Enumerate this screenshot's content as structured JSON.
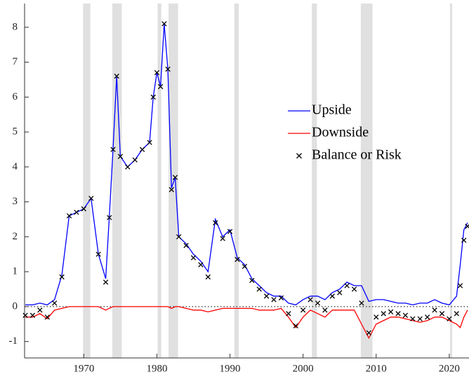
{
  "chart_data": {
    "type": "line",
    "x": [
      1962,
      1963,
      1964,
      1965,
      1966,
      1967,
      1968,
      1969,
      1970,
      1971,
      1972,
      1973,
      1973.5,
      1974,
      1974.5,
      1975,
      1976,
      1977,
      1978,
      1979,
      1979.5,
      1980,
      1980.5,
      1981,
      1981.5,
      1982,
      1982.5,
      1983,
      1984,
      1985,
      1986,
      1987,
      1988,
      1989,
      1990,
      1991,
      1992,
      1993,
      1994,
      1995,
      1996,
      1997,
      1998,
      1999,
      2000,
      2001,
      2002,
      2003,
      2004,
      2005,
      2006,
      2007,
      2008,
      2009,
      2010,
      2011,
      2012,
      2013,
      2014,
      2015,
      2016,
      2017,
      2018,
      2019,
      2020,
      2021,
      2021.5,
      2022,
      2022.5
    ],
    "series": [
      {
        "name": "Upside",
        "color": "#0000ff",
        "marker": "line",
        "values": [
          0.05,
          0.05,
          0.1,
          0.05,
          0.2,
          0.9,
          2.6,
          2.7,
          2.8,
          3.1,
          1.5,
          0.8,
          2.6,
          4.5,
          6.6,
          4.3,
          4.0,
          4.2,
          4.5,
          4.7,
          6.0,
          6.7,
          6.3,
          8.1,
          6.8,
          3.4,
          3.7,
          2.0,
          1.8,
          1.5,
          1.3,
          1.0,
          2.5,
          2.0,
          2.2,
          1.4,
          1.2,
          0.8,
          0.6,
          0.4,
          0.3,
          0.3,
          0.1,
          0.05,
          0.2,
          0.3,
          0.3,
          0.2,
          0.4,
          0.5,
          0.7,
          0.6,
          0.6,
          0.15,
          0.2,
          0.2,
          0.15,
          0.1,
          0.1,
          0.05,
          0.1,
          0.1,
          0.2,
          0.1,
          0.05,
          0.3,
          1.2,
          2.2,
          2.4
        ]
      },
      {
        "name": "Downside",
        "color": "#ff0000",
        "marker": "line",
        "values": [
          -0.3,
          -0.3,
          -0.2,
          -0.35,
          -0.1,
          -0.05,
          0,
          0,
          0,
          0,
          0,
          -0.1,
          -0.05,
          0,
          0,
          0,
          0,
          0,
          0,
          0,
          0,
          0,
          0,
          0,
          0,
          -0.05,
          0,
          0,
          -0.05,
          -0.1,
          -0.1,
          -0.15,
          -0.1,
          -0.05,
          -0.05,
          -0.05,
          -0.05,
          -0.05,
          -0.1,
          -0.1,
          -0.1,
          -0.05,
          -0.3,
          -0.6,
          -0.3,
          -0.1,
          -0.2,
          -0.3,
          -0.1,
          -0.1,
          -0.1,
          -0.1,
          -0.5,
          -0.9,
          -0.5,
          -0.4,
          -0.3,
          -0.3,
          -0.35,
          -0.4,
          -0.45,
          -0.4,
          -0.3,
          -0.3,
          -0.4,
          -0.5,
          -0.6,
          -0.3,
          -0.1
        ]
      },
      {
        "name": "Balance or Risk",
        "color": "#000000",
        "marker": "x",
        "values": [
          -0.25,
          -0.25,
          -0.1,
          -0.3,
          0.1,
          0.85,
          2.6,
          2.7,
          2.8,
          3.1,
          1.5,
          0.7,
          2.55,
          4.5,
          6.6,
          4.3,
          4.0,
          4.2,
          4.5,
          4.7,
          6.0,
          6.7,
          6.3,
          8.1,
          6.8,
          3.35,
          3.7,
          2.0,
          1.75,
          1.4,
          1.2,
          0.85,
          2.4,
          1.95,
          2.15,
          1.35,
          1.15,
          0.75,
          0.5,
          0.3,
          0.2,
          0.25,
          -0.2,
          -0.55,
          -0.1,
          0.2,
          0.1,
          -0.1,
          0.3,
          0.4,
          0.6,
          0.5,
          0.1,
          -0.75,
          -0.3,
          -0.2,
          -0.15,
          -0.2,
          -0.25,
          -0.35,
          -0.35,
          -0.3,
          -0.1,
          -0.2,
          -0.35,
          -0.2,
          0.6,
          1.9,
          2.3
        ]
      }
    ],
    "recessions": [
      [
        1969.9,
        1970.9
      ],
      [
        1973.9,
        1975.2
      ],
      [
        1980.1,
        1980.6
      ],
      [
        1981.6,
        1982.9
      ],
      [
        1990.6,
        1991.2
      ],
      [
        2001.2,
        2001.9
      ],
      [
        2007.9,
        2009.5
      ],
      [
        2020.1,
        2020.4
      ]
    ],
    "recession_color": "#e0e0e0",
    "hline": 0,
    "xlim": [
      1961.9,
      2022.7
    ],
    "ylim": [
      -1.47,
      8.68
    ],
    "xticks": [
      1970,
      1980,
      1990,
      2000,
      2010,
      2020
    ],
    "yticks": [
      -1,
      0,
      1,
      2,
      3,
      4,
      5,
      6,
      7,
      8
    ],
    "legend": "right"
  }
}
